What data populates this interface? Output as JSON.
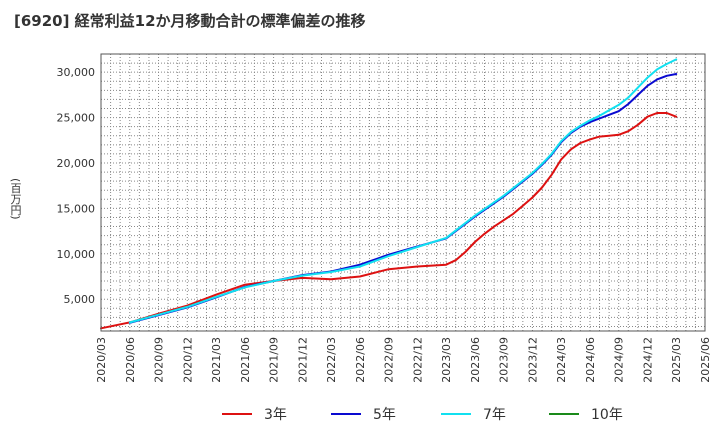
{
  "chart_data": {
    "type": "line",
    "title": "[6920]  経常利益12か月移動合計の標準偏差の推移",
    "ylabel": "(百万円)",
    "xlabel": "",
    "ylim": [
      1500,
      32000
    ],
    "yticks": [
      5000,
      10000,
      15000,
      20000,
      25000,
      30000
    ],
    "ytick_labels": [
      "5,000",
      "10,000",
      "15,000",
      "20,000",
      "25,000",
      "30,000"
    ],
    "xticks": [
      "2020/03",
      "2020/06",
      "2020/09",
      "2020/12",
      "2021/03",
      "2021/06",
      "2021/09",
      "2021/12",
      "2022/03",
      "2022/06",
      "2022/09",
      "2022/12",
      "2023/03",
      "2023/06",
      "2023/09",
      "2023/12",
      "2024/03",
      "2024/06",
      "2024/09",
      "2024/12",
      "2025/03",
      "2025/06"
    ],
    "grid": true,
    "legend_position": "bottom",
    "series": [
      {
        "name": "3年",
        "color": "#dd1111",
        "x": [
          "2020/03",
          "2020/06",
          "2020/09",
          "2020/12",
          "2021/03",
          "2021/06",
          "2021/09",
          "2021/12",
          "2022/03",
          "2022/06",
          "2022/09",
          "2022/12",
          "2023/03",
          "2023/04",
          "2023/05",
          "2023/06",
          "2023/07",
          "2023/08",
          "2023/09",
          "2023/10",
          "2023/11",
          "2023/12",
          "2024/01",
          "2024/02",
          "2024/03",
          "2024/04",
          "2024/05",
          "2024/06",
          "2024/07",
          "2024/08",
          "2024/09",
          "2024/10",
          "2024/11",
          "2024/12",
          "2025/01",
          "2025/02",
          "2025/03"
        ],
        "values": [
          1800,
          2450,
          3400,
          4300,
          5500,
          6600,
          7000,
          7350,
          7200,
          7500,
          8300,
          8600,
          8800,
          9300,
          10200,
          11300,
          12200,
          13000,
          13700,
          14400,
          15300,
          16200,
          17300,
          18700,
          20400,
          21500,
          22200,
          22600,
          22900,
          23000,
          23100,
          23500,
          24200,
          25100,
          25500,
          25500,
          25100
        ]
      },
      {
        "name": "5年",
        "color": "#0a0ad0",
        "x": [
          "2020/06",
          "2020/09",
          "2020/12",
          "2021/03",
          "2021/06",
          "2021/09",
          "2021/12",
          "2022/03",
          "2022/06",
          "2022/09",
          "2022/12",
          "2023/03",
          "2023/06",
          "2023/09",
          "2023/12",
          "2024/01",
          "2024/02",
          "2024/03",
          "2024/04",
          "2024/05",
          "2024/06",
          "2024/07",
          "2024/08",
          "2024/09",
          "2024/10",
          "2024/11",
          "2024/12",
          "2025/01",
          "2025/02",
          "2025/03"
        ],
        "values": [
          2400,
          3250,
          4100,
          5200,
          6350,
          7000,
          7650,
          8050,
          8800,
          9900,
          10800,
          11700,
          14100,
          16300,
          18800,
          19800,
          20900,
          22300,
          23300,
          24000,
          24500,
          24900,
          25300,
          25700,
          26500,
          27500,
          28500,
          29200,
          29600,
          29800
        ]
      },
      {
        "name": "7年",
        "color": "#11e0f0",
        "x": [
          "2020/06",
          "2020/09",
          "2020/12",
          "2021/03",
          "2021/06",
          "2021/09",
          "2021/12",
          "2022/03",
          "2022/06",
          "2022/09",
          "2022/12",
          "2023/03",
          "2023/06",
          "2023/09",
          "2023/12",
          "2024/01",
          "2024/02",
          "2024/03",
          "2024/04",
          "2024/05",
          "2024/06",
          "2024/07",
          "2024/08",
          "2024/09",
          "2024/10",
          "2024/11",
          "2024/12",
          "2025/01",
          "2025/02",
          "2025/03"
        ],
        "values": [
          2450,
          3300,
          4150,
          5250,
          6300,
          7000,
          7600,
          8000,
          8600,
          9750,
          10750,
          11750,
          14200,
          16400,
          18900,
          19900,
          21000,
          22400,
          23400,
          24100,
          24700,
          25200,
          25800,
          26400,
          27200,
          28300,
          29400,
          30300,
          30900,
          31400
        ]
      },
      {
        "name": "10年",
        "color": "#1a8a1a",
        "x": [],
        "values": []
      }
    ]
  }
}
